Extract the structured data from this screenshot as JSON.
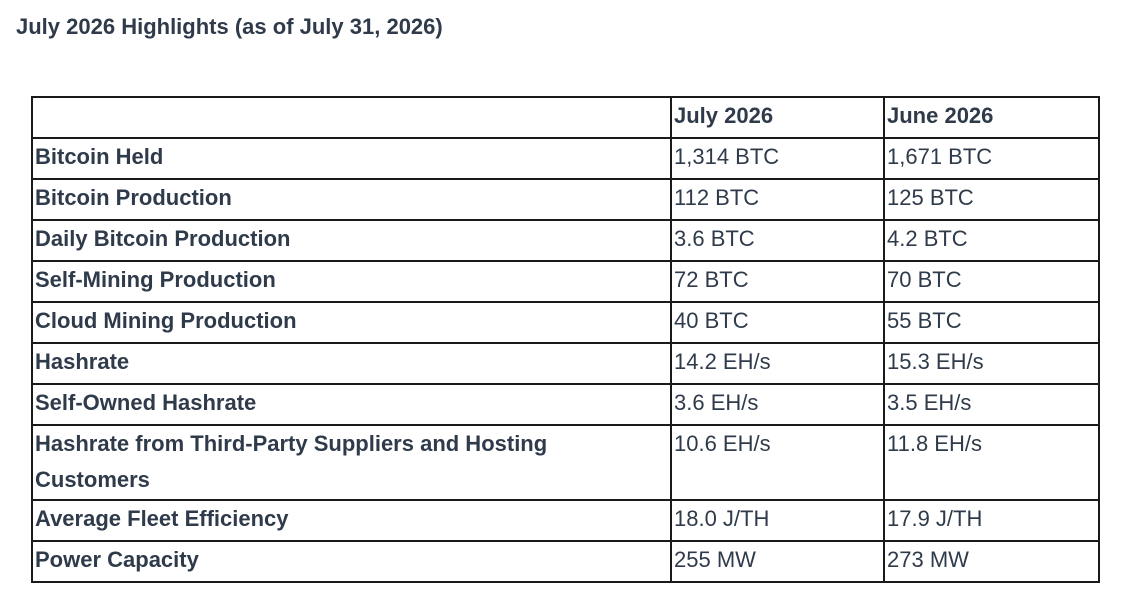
{
  "title": "July 2026 Highlights (as of July 31, 2026)",
  "table": {
    "headers": [
      "",
      "July 2026",
      "June 2026"
    ],
    "rows": [
      {
        "metric": "Bitcoin Held",
        "july": "1,314 BTC",
        "june": "1,671 BTC"
      },
      {
        "metric": "Bitcoin Production",
        "july": "112 BTC",
        "june": "125 BTC"
      },
      {
        "metric": "Daily Bitcoin Production",
        "july": "3.6 BTC",
        "june": "4.2 BTC"
      },
      {
        "metric": "Self-Mining Production",
        "july": "72 BTC",
        "june": "70 BTC"
      },
      {
        "metric": "Cloud Mining Production",
        "july": "40 BTC",
        "june": "55 BTC"
      },
      {
        "metric": "Hashrate",
        "july": "14.2 EH/s",
        "june": "15.3 EH/s"
      },
      {
        "metric": "Self-Owned Hashrate",
        "july": "3.6 EH/s",
        "june": "3.5 EH/s"
      },
      {
        "metric": "Hashrate from Third-Party Suppliers and Hosting Customers",
        "july": "10.6 EH/s",
        "june": "11.8 EH/s"
      },
      {
        "metric": "Average Fleet Efficiency",
        "july": "18.0 J/TH",
        "june": "17.9 J/TH"
      },
      {
        "metric": "Power Capacity",
        "july": "255 MW",
        "june": "273 MW"
      }
    ]
  }
}
